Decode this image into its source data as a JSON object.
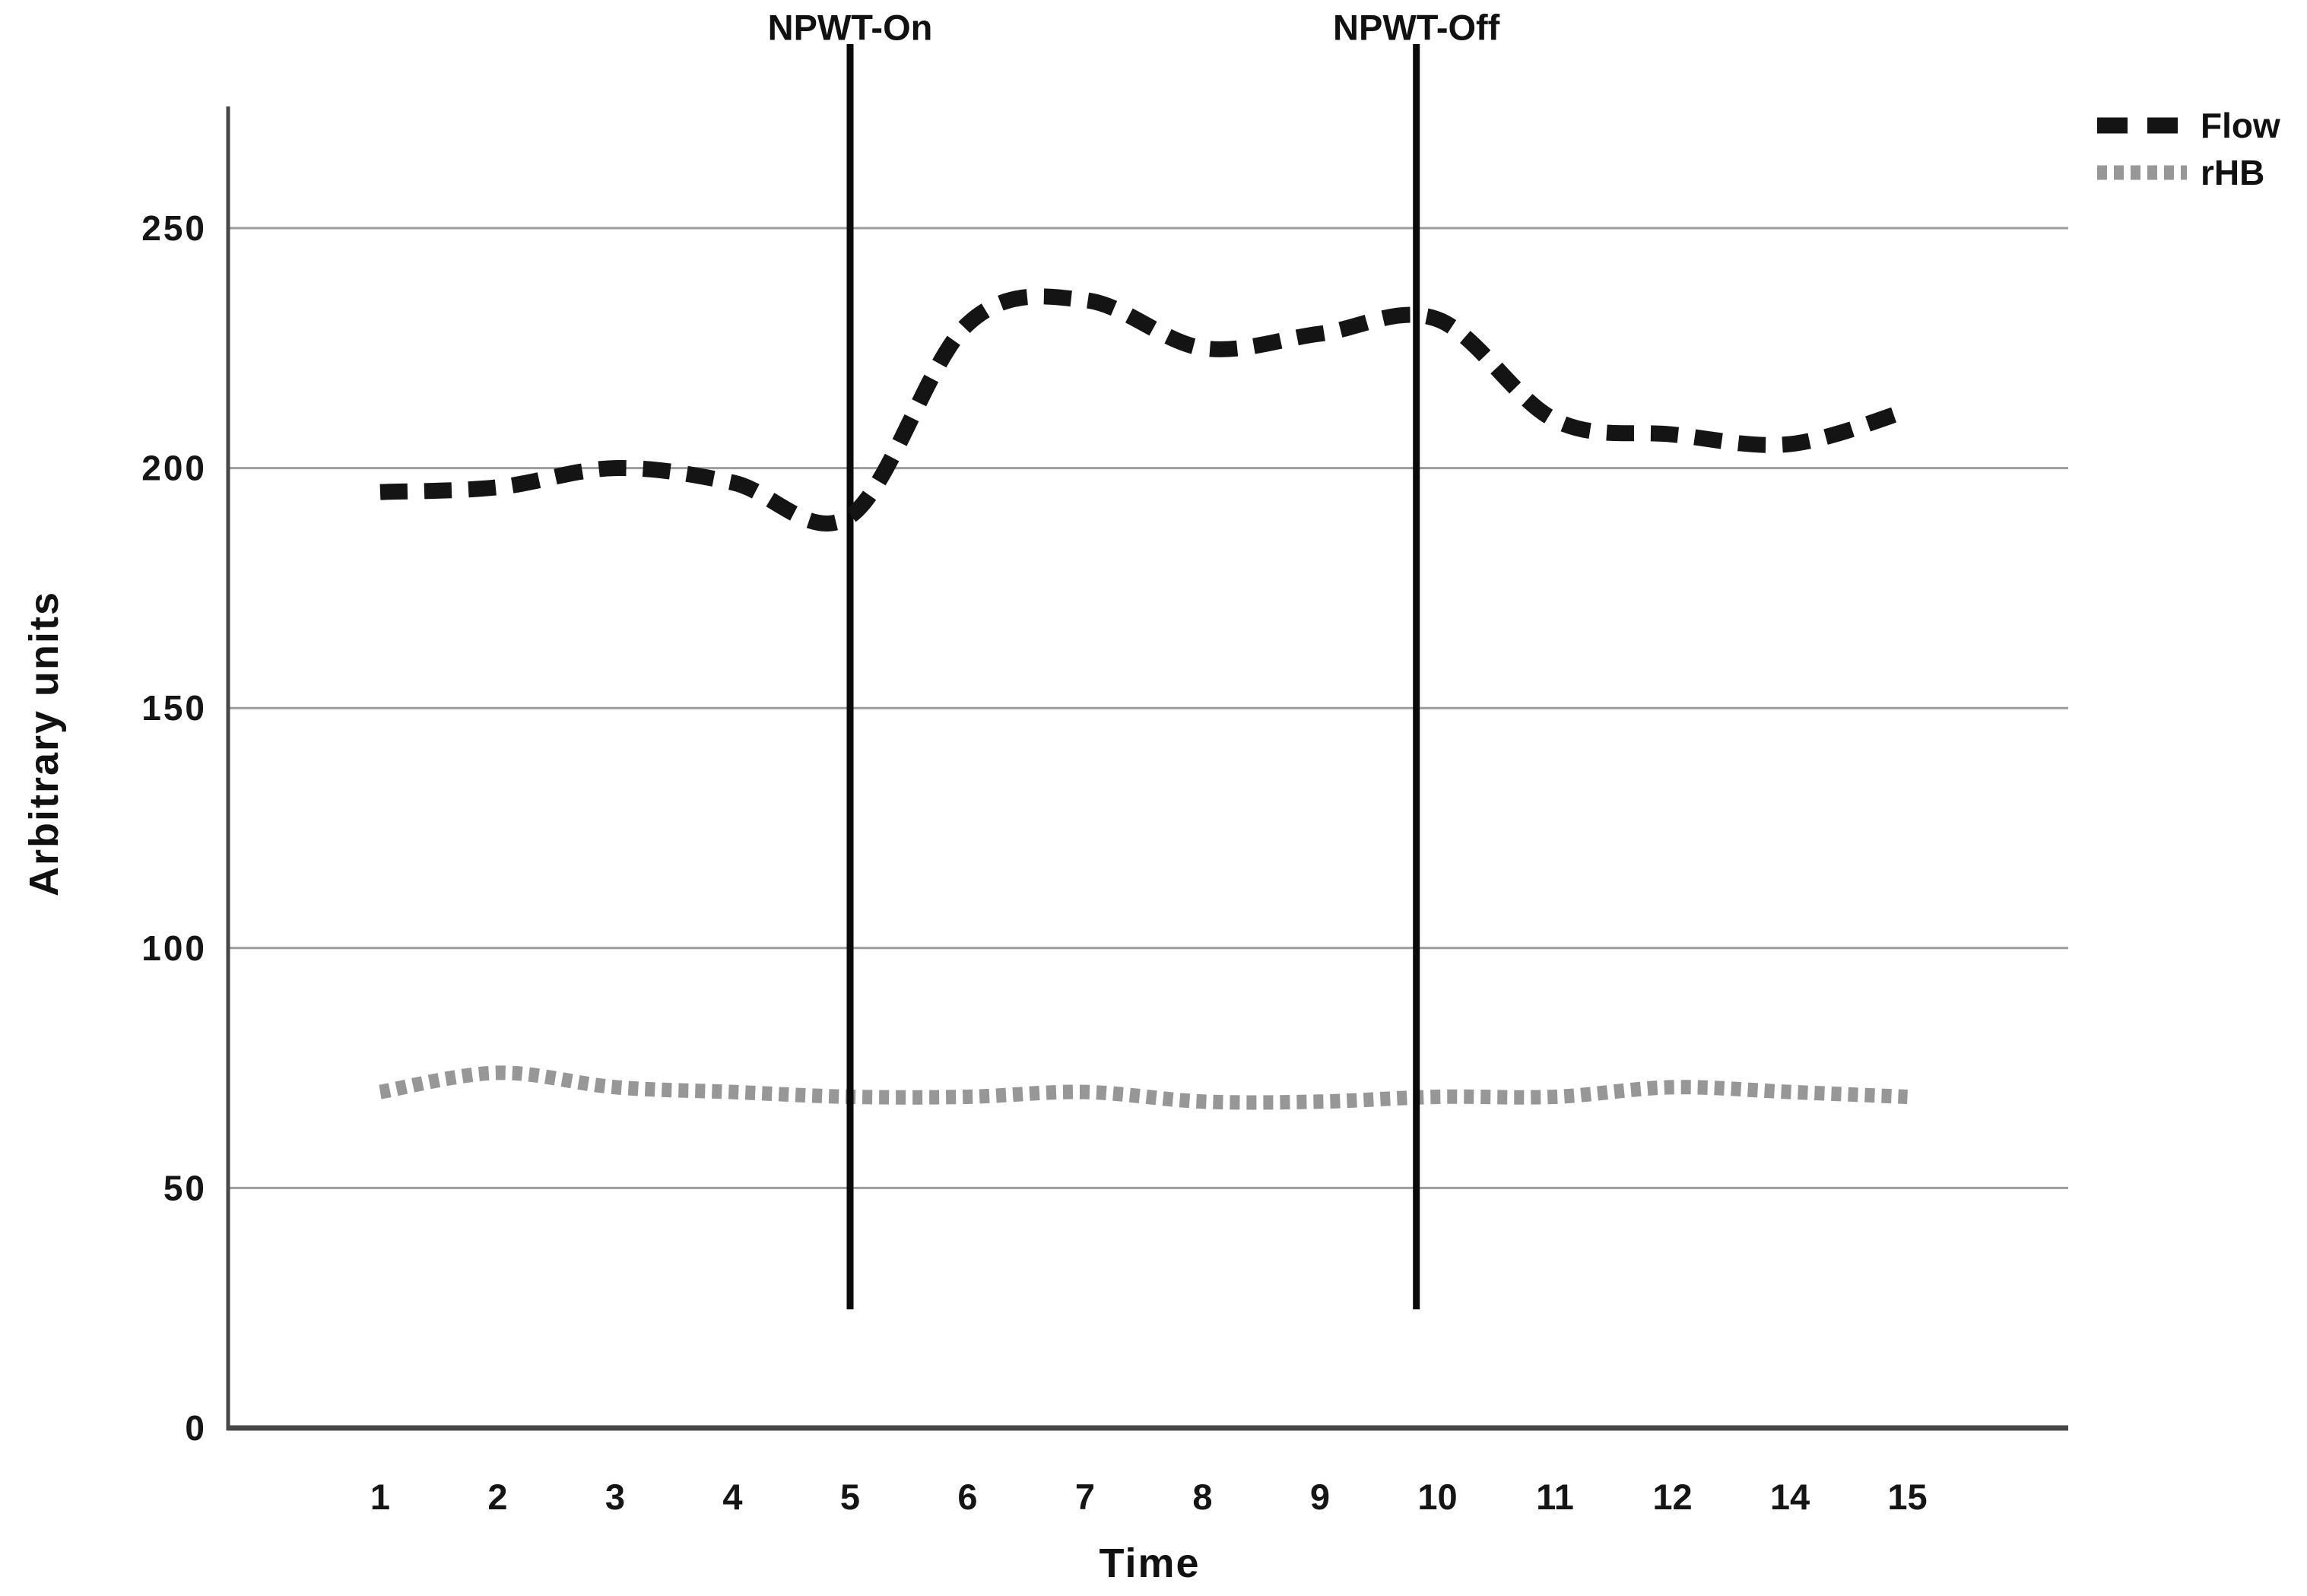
{
  "chart_data": {
    "type": "line",
    "title": "",
    "xlabel": "Time",
    "ylabel": "Arbitrary units",
    "categories": [
      "1",
      "2",
      "3",
      "4",
      "5",
      "6",
      "7",
      "8",
      "9",
      "10",
      "11",
      "12",
      "14",
      "15"
    ],
    "series": [
      {
        "name": "Flow",
        "color": "#141414",
        "style": "dashed",
        "values": [
          195,
          196,
          200,
          197,
          190,
          230,
          235,
          225,
          228,
          231,
          210,
          207,
          205,
          212
        ]
      },
      {
        "name": "rHB",
        "color": "#979797",
        "style": "dotted",
        "values": [
          70,
          74,
          71,
          70,
          69,
          69,
          70,
          68,
          68,
          69,
          69,
          71,
          70,
          69
        ]
      }
    ],
    "yticks": [
      0,
      50,
      100,
      150,
      200,
      250
    ],
    "ylim": [
      0,
      280
    ],
    "grid": "horizontal",
    "gridline_color": "#9c9c9c",
    "axis_color": "#474747",
    "tick_label_color": "#151515",
    "legend_position": "top-right",
    "annotations": [
      {
        "label": "NPWT-On",
        "x_index": 5.0,
        "line_color": "#0a0a0a"
      },
      {
        "label": "NPWT-Off",
        "x_index": 9.82,
        "line_color": "#0a0a0a"
      }
    ]
  }
}
